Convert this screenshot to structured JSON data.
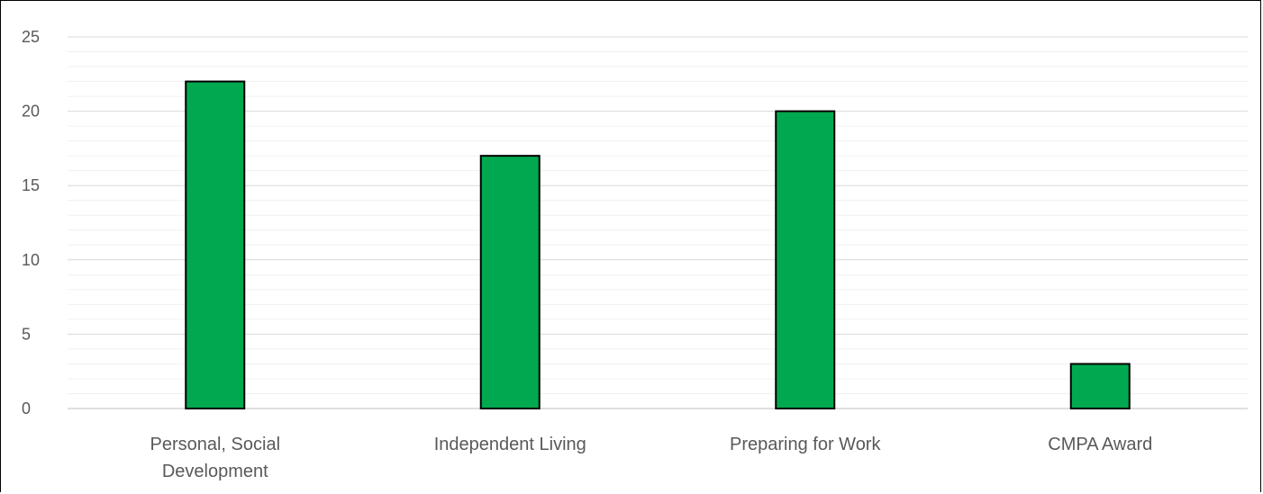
{
  "chart_data": {
    "type": "bar",
    "categories": [
      [
        "Personal, Social",
        "Development"
      ],
      [
        "Independent Living"
      ],
      [
        "Preparing for Work"
      ],
      [
        "CMPA Award"
      ]
    ],
    "values": [
      22,
      17,
      20,
      3
    ],
    "ylim": [
      0,
      25
    ],
    "yticks": [
      "0",
      "5",
      "10",
      "15",
      "20",
      "25"
    ],
    "grid": true,
    "minor_grid": true,
    "bar_color": "#00A94F",
    "bar_outline": "#000000",
    "title": "",
    "xlabel": "",
    "ylabel": ""
  }
}
